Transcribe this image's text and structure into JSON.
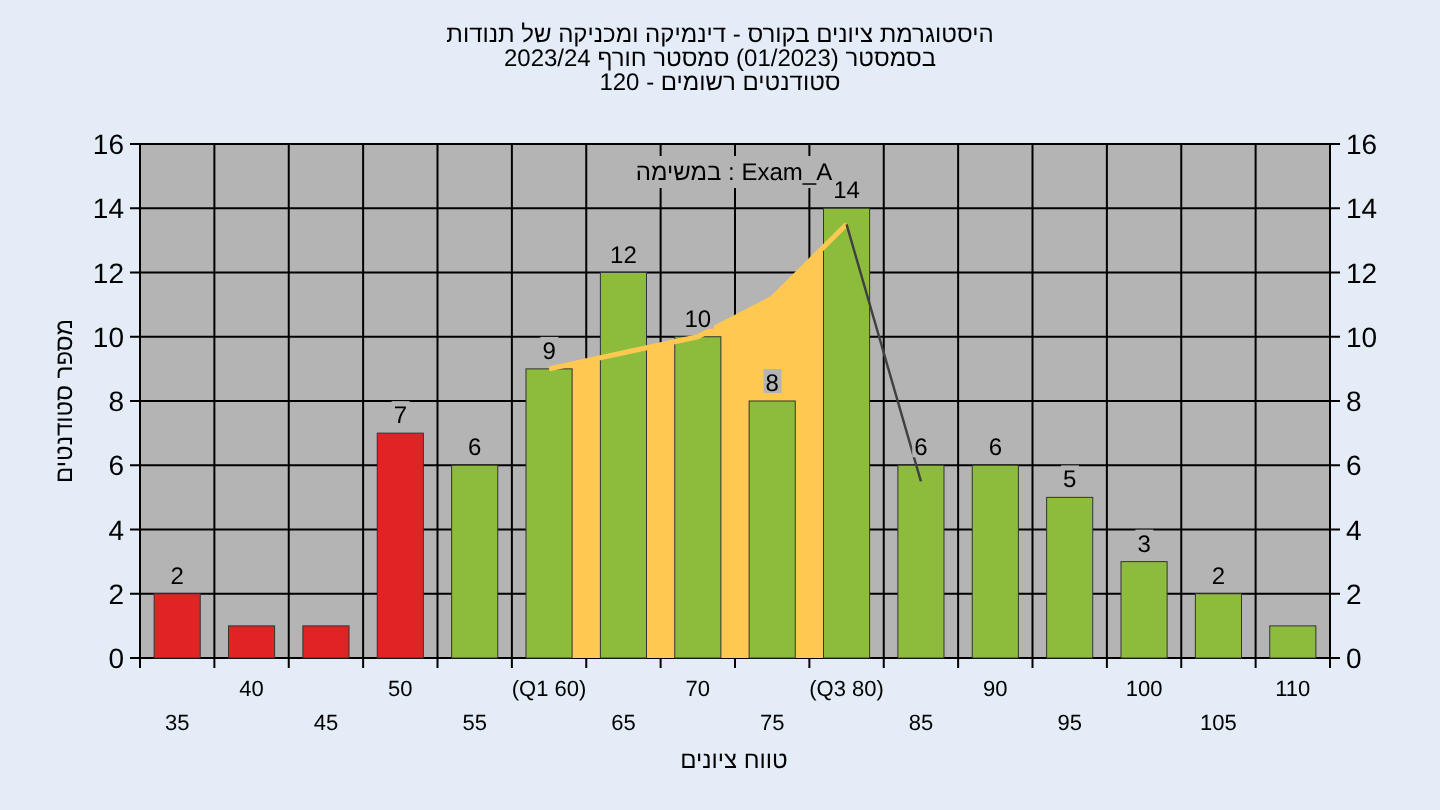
{
  "chart_data": {
    "type": "bar",
    "title": "היסטוגרמת ציונים בקורס - דינמיקה ומכניקה של תנודות",
    "subtitle": [
      "בסמסטר (01/2023) סמסטר חורף 2023/24",
      "סטודנטים רשומים - 120"
    ],
    "xlabel": "טווח ציונים",
    "ylabel": "מספר סטודנטים",
    "annotations": [
      "במשימה : Exam_A"
    ],
    "categories": [
      "35",
      "40",
      "45",
      "50",
      "55",
      "(Q1 60)",
      "65",
      "70",
      "75",
      "(Q3 80)",
      "85",
      "90",
      "95",
      "100",
      "105",
      "110"
    ],
    "series": [
      {
        "type": "area",
        "color": "#ffc850",
        "values": [
          null,
          null,
          null,
          null,
          null,
          9,
          9.5,
          10,
          11.2,
          13.5,
          null,
          null,
          null,
          null,
          null,
          null
        ]
      },
      {
        "type": "line",
        "color": "#404040",
        "values": [
          null,
          null,
          null,
          null,
          null,
          null,
          null,
          null,
          null,
          13.5,
          5.5,
          null,
          null,
          null,
          null,
          null
        ]
      },
      {
        "colors": [
          "#e02424",
          "#e02424",
          "#e02424",
          "#e02424",
          "#8dbb3c",
          "#8dbb3c",
          "#8dbb3c",
          "#8dbb3c",
          "#8dbb3c",
          "#8dbb3c",
          "#8dbb3c",
          "#8dbb3c",
          "#8dbb3c",
          "#8dbb3c",
          "#8dbb3c",
          "#8dbb3c"
        ],
        "values": [
          2,
          1,
          1,
          7,
          6,
          9,
          12,
          10,
          8,
          14,
          6,
          6,
          5,
          3,
          2,
          1
        ],
        "value_labels": [
          "2",
          null,
          null,
          "7",
          "6",
          "9",
          "12",
          "10",
          "8",
          "14",
          "6",
          "6",
          "5",
          "3",
          "2",
          null
        ]
      }
    ],
    "ylim": [
      0,
      16
    ],
    "yticks": [
      0,
      2,
      4,
      6,
      8,
      10,
      12,
      14,
      16
    ],
    "y2lim": [
      0,
      16
    ],
    "y2ticks": [
      0,
      2,
      4,
      6,
      8,
      10,
      12,
      14,
      16
    ],
    "grid": true
  }
}
